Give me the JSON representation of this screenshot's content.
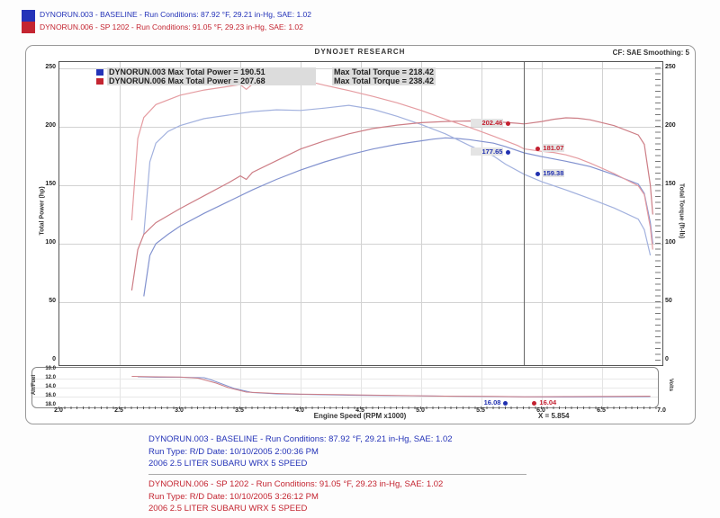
{
  "colors": {
    "blue": "#2433b8",
    "red": "#c42531",
    "blue_power": "#8292cf",
    "blue_torque": "#a2b1de",
    "red_power": "#cd7e86",
    "red_torque": "#e59ca1",
    "dot_blue": "#2030b0",
    "dot_red": "#c32030",
    "grid": "#d2d2d2",
    "cursor_line": "#666666"
  },
  "header": {
    "runs": [
      {
        "label": "DYNORUN.003 - BASELINE  -  Run Conditions: 87.92 °F, 29.21 in-Hg, SAE: 1.02"
      },
      {
        "label": "DYNORUN.006 - SP 1202  -  Run Conditions: 91.05 °F, 29.23 in-Hg, SAE: 1.02"
      }
    ]
  },
  "chart": {
    "title": "DYNOJET RESEARCH",
    "correction": "CF: SAE   Smoothing: 5",
    "legend": [
      {
        "text": "DYNORUN.003 Max Total Power = 190.51",
        "torque": "Max Total Torque = 218.42"
      },
      {
        "text": "DYNORUN.006 Max Total Power = 207.68",
        "torque": "Max Total Torque = 238.42"
      }
    ],
    "y_left_label": "Total Power (hp)",
    "y_right_label": "Total Torque (ft-lb)",
    "afr_left_label": "Air/Fuel",
    "afr_right_label": "Volts",
    "x_label": "Engine Speed (RPM x1000)",
    "cursor_readout": "X = 5.854"
  },
  "chart_data": {
    "type": "line",
    "title": "DYNOJET RESEARCH",
    "xlabel": "Engine Speed (RPM x1000)",
    "ylabel_left": "Total Power (hp)",
    "ylabel_right": "Total Torque (ft-lb)",
    "xlim": [
      2.0,
      7.0
    ],
    "ylim": [
      0,
      255
    ],
    "x_ticks": [
      "2.0",
      "2.5",
      "3.0",
      "3.5",
      "4.0",
      "4.5",
      "5.0",
      "5.5",
      "6.0",
      "6.5",
      "7.0"
    ],
    "y_ticks": [
      "0",
      "50",
      "100",
      "150",
      "200",
      "250"
    ],
    "grid": true,
    "cursor_x": 5.854,
    "cursor_markers": [
      {
        "series": "DYNORUN.006 Total Power",
        "label": "202.46",
        "value": 202.46,
        "color": "dot_red",
        "side": "left"
      },
      {
        "series": "DYNORUN.006 Total Torque",
        "label": "181.07",
        "value": 181.07,
        "color": "dot_red",
        "side": "right"
      },
      {
        "series": "DYNORUN.003 Total Power",
        "label": "177.65",
        "value": 177.65,
        "color": "dot_blue",
        "side": "left"
      },
      {
        "series": "DYNORUN.003 Total Torque",
        "label": "159.38",
        "value": 159.38,
        "color": "dot_blue",
        "side": "right"
      }
    ],
    "series": [
      {
        "name": "DYNORUN.003 Total Power",
        "unit": "hp",
        "color": "blue_power",
        "max": 190.51,
        "points": [
          [
            2.7,
            55
          ],
          [
            2.75,
            90
          ],
          [
            2.8,
            100
          ],
          [
            2.9,
            108
          ],
          [
            3.0,
            115
          ],
          [
            3.2,
            126
          ],
          [
            3.4,
            136
          ],
          [
            3.6,
            146
          ],
          [
            3.8,
            155
          ],
          [
            4.0,
            163
          ],
          [
            4.2,
            170
          ],
          [
            4.4,
            176
          ],
          [
            4.6,
            181
          ],
          [
            4.8,
            185
          ],
          [
            5.0,
            188
          ],
          [
            5.1,
            189.5
          ],
          [
            5.2,
            190.5
          ],
          [
            5.3,
            190
          ],
          [
            5.4,
            189
          ],
          [
            5.6,
            186
          ],
          [
            5.7,
            183
          ],
          [
            5.854,
            177.7
          ],
          [
            6.0,
            174.5
          ],
          [
            6.2,
            170.5
          ],
          [
            6.4,
            166
          ],
          [
            6.6,
            159
          ],
          [
            6.8,
            151
          ],
          [
            6.85,
            143
          ],
          [
            6.9,
            118
          ],
          [
            6.92,
            100
          ]
        ]
      },
      {
        "name": "DYNORUN.003 Total Torque",
        "unit": "ft-lb",
        "color": "blue_torque",
        "max": 218.42,
        "points": [
          [
            2.7,
            108
          ],
          [
            2.75,
            170
          ],
          [
            2.8,
            186
          ],
          [
            2.9,
            196
          ],
          [
            3.0,
            201
          ],
          [
            3.2,
            207
          ],
          [
            3.4,
            210
          ],
          [
            3.6,
            213
          ],
          [
            3.8,
            214.5
          ],
          [
            4.0,
            214
          ],
          [
            4.2,
            216
          ],
          [
            4.4,
            218.4
          ],
          [
            4.6,
            215
          ],
          [
            4.8,
            209
          ],
          [
            5.0,
            202
          ],
          [
            5.2,
            194
          ],
          [
            5.4,
            184
          ],
          [
            5.6,
            175
          ],
          [
            5.7,
            168
          ],
          [
            5.854,
            159.4
          ],
          [
            6.0,
            153
          ],
          [
            6.2,
            146
          ],
          [
            6.4,
            138.5
          ],
          [
            6.6,
            130.5
          ],
          [
            6.8,
            121
          ],
          [
            6.85,
            112
          ],
          [
            6.9,
            90
          ]
        ]
      },
      {
        "name": "DYNORUN.006 Total Power",
        "unit": "hp",
        "color": "red_power",
        "max": 207.68,
        "points": [
          [
            2.6,
            60
          ],
          [
            2.65,
            95
          ],
          [
            2.7,
            108
          ],
          [
            2.8,
            118
          ],
          [
            3.0,
            130
          ],
          [
            3.2,
            141
          ],
          [
            3.4,
            152
          ],
          [
            3.5,
            158
          ],
          [
            3.55,
            155
          ],
          [
            3.6,
            161
          ],
          [
            3.8,
            171
          ],
          [
            4.0,
            181
          ],
          [
            4.2,
            188
          ],
          [
            4.4,
            194
          ],
          [
            4.6,
            198.5
          ],
          [
            4.8,
            201.5
          ],
          [
            5.0,
            203.5
          ],
          [
            5.2,
            204.5
          ],
          [
            5.4,
            205
          ],
          [
            5.6,
            204.5
          ],
          [
            5.8,
            203
          ],
          [
            5.854,
            202.5
          ],
          [
            6.0,
            204.5
          ],
          [
            6.1,
            206.5
          ],
          [
            6.2,
            207.7
          ],
          [
            6.3,
            207.3
          ],
          [
            6.4,
            206
          ],
          [
            6.6,
            201
          ],
          [
            6.8,
            193
          ],
          [
            6.85,
            185
          ],
          [
            6.9,
            150
          ],
          [
            6.92,
            125
          ]
        ]
      },
      {
        "name": "DYNORUN.006 Total Torque",
        "unit": "ft-lb",
        "color": "red_torque",
        "max": 238.42,
        "points": [
          [
            2.6,
            120
          ],
          [
            2.65,
            190
          ],
          [
            2.7,
            208
          ],
          [
            2.8,
            219
          ],
          [
            3.0,
            227
          ],
          [
            3.2,
            231.5
          ],
          [
            3.4,
            234.5
          ],
          [
            3.5,
            236
          ],
          [
            3.55,
            232
          ],
          [
            3.6,
            236.5
          ],
          [
            3.8,
            237.5
          ],
          [
            4.0,
            238.4
          ],
          [
            4.1,
            238
          ],
          [
            4.2,
            235.5
          ],
          [
            4.4,
            231
          ],
          [
            4.6,
            226
          ],
          [
            4.8,
            220.5
          ],
          [
            5.0,
            214
          ],
          [
            5.2,
            206.5
          ],
          [
            5.4,
            199.5
          ],
          [
            5.6,
            192
          ],
          [
            5.8,
            184
          ],
          [
            5.854,
            181.1
          ],
          [
            6.0,
            179
          ],
          [
            6.1,
            178
          ],
          [
            6.2,
            176
          ],
          [
            6.3,
            173
          ],
          [
            6.4,
            169
          ],
          [
            6.6,
            160
          ],
          [
            6.8,
            149.5
          ],
          [
            6.85,
            142
          ],
          [
            6.9,
            114
          ],
          [
            6.92,
            95
          ]
        ]
      }
    ],
    "afr_panel": {
      "ylim": [
        10,
        18
      ],
      "y_ticks": [
        "10.0",
        "12.0",
        "14.0",
        "16.0",
        "18.0"
      ],
      "left_label": "Air/Fuel",
      "right_label": "Volts",
      "cursor_markers": [
        {
          "label": "16.08",
          "color": "dot_blue",
          "side": "left"
        },
        {
          "label": "16.04",
          "color": "dot_red",
          "side": "right"
        }
      ],
      "series": [
        {
          "name": "DYNORUN.003 Air/Fuel",
          "color": "blue_power",
          "points": [
            [
              2.65,
              11.6
            ],
            [
              2.8,
              11.7
            ],
            [
              3.0,
              11.7
            ],
            [
              3.2,
              11.8
            ],
            [
              3.25,
              12.2
            ],
            [
              3.35,
              13.2
            ],
            [
              3.45,
              14.2
            ],
            [
              3.6,
              15.1
            ],
            [
              3.8,
              15.4
            ],
            [
              4.0,
              15.5
            ],
            [
              4.4,
              15.7
            ],
            [
              4.8,
              15.8
            ],
            [
              5.2,
              15.9
            ],
            [
              5.6,
              16.0
            ],
            [
              5.854,
              16.08
            ],
            [
              6.2,
              16.1
            ],
            [
              6.6,
              16.05
            ],
            [
              6.9,
              16.0
            ]
          ]
        },
        {
          "name": "DYNORUN.006 Air/Fuel",
          "color": "red_power",
          "points": [
            [
              2.6,
              11.5
            ],
            [
              2.8,
              11.6
            ],
            [
              3.0,
              11.65
            ],
            [
              3.15,
              11.9
            ],
            [
              3.3,
              13.0
            ],
            [
              3.4,
              14.0
            ],
            [
              3.55,
              15.0
            ],
            [
              3.8,
              15.3
            ],
            [
              4.0,
              15.45
            ],
            [
              4.4,
              15.6
            ],
            [
              4.8,
              15.75
            ],
            [
              5.2,
              15.9
            ],
            [
              5.6,
              15.95
            ],
            [
              5.854,
              16.04
            ],
            [
              6.2,
              16.0
            ],
            [
              6.6,
              15.95
            ],
            [
              6.9,
              15.9
            ]
          ]
        }
      ]
    }
  },
  "footer": {
    "runs": [
      {
        "lines": [
          "DYNORUN.003 - BASELINE  -  Run Conditions: 87.92 °F, 29.21 in-Hg, SAE: 1.02",
          "Run Type: R/D  Date: 10/10/2005 2:00:36 PM",
          "2006 2.5 LITER SUBARU WRX 5 SPEED"
        ]
      },
      {
        "lines": [
          "DYNORUN.006 - SP 1202  -  Run Conditions: 91.05 °F, 29.23 in-Hg, SAE: 1.02",
          "Run Type: R/D  Date: 10/10/2005 3:26:12 PM",
          "2006 2.5 LITER SUBARU WRX 5 SPEED"
        ]
      }
    ]
  }
}
